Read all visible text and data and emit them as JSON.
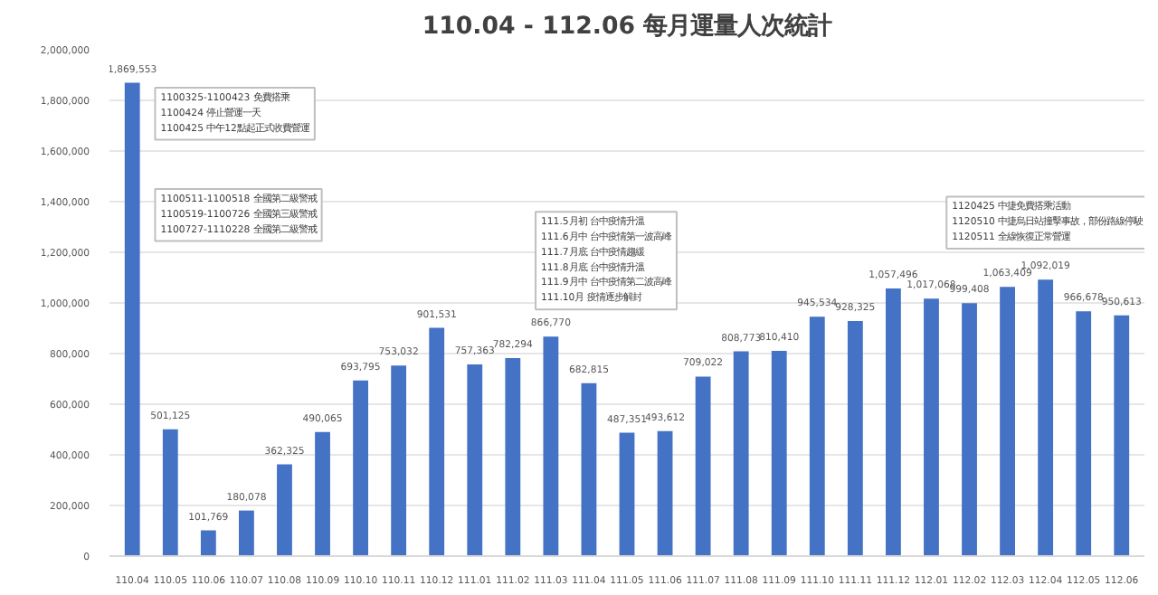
{
  "chart_data": {
    "type": "bar",
    "title": "110.04 - 112.06 每月運量人次統計",
    "categories": [
      "110.04",
      "110.05",
      "110.06",
      "110.07",
      "110.08",
      "110.09",
      "110.10",
      "110.11",
      "110.12",
      "111.01",
      "111.02",
      "111.03",
      "111.04",
      "111.05",
      "111.06",
      "111.07",
      "111.08",
      "111.09",
      "111.10",
      "111.11",
      "111.12",
      "112.01",
      "112.02",
      "112.03",
      "112.04",
      "112.05",
      "112.06"
    ],
    "values": [
      1869553,
      501125,
      101769,
      180078,
      362325,
      490065,
      693795,
      753032,
      901531,
      757363,
      782294,
      866770,
      682815,
      487351,
      493612,
      709022,
      808773,
      810410,
      945534,
      928325,
      1057496,
      1017068,
      999408,
      1063409,
      1092019,
      966678,
      950613
    ],
    "color": "#4472c4",
    "value_labels": [
      "1,869,553",
      "501,125",
      "101,769",
      "180,078",
      "362,325",
      "490,065",
      "693,795",
      "753,032",
      "901,531",
      "757,363",
      "782,294",
      "866,770",
      "682,815",
      "487,351",
      "493,612",
      "709,022",
      "808,773",
      "810,410",
      "945,534",
      "928,325",
      "1,057,496",
      "1,017,068",
      "999,408",
      "1,063,409",
      "1,092,019",
      "966,678",
      "950,613"
    ],
    "ylim": [
      0,
      2000000
    ],
    "yticks": [
      {
        "value": 0,
        "label": "0"
      },
      {
        "value": 200000,
        "label": "200,000"
      },
      {
        "value": 400000,
        "label": "400,000"
      },
      {
        "value": 600000,
        "label": "600,000"
      },
      {
        "value": 800000,
        "label": "800,000"
      },
      {
        "value": 1000000,
        "label": "1,000,000"
      },
      {
        "value": 1200000,
        "label": "1,200,000"
      },
      {
        "value": 1400000,
        "label": "1,400,000"
      },
      {
        "value": 1600000,
        "label": "1,600,000"
      },
      {
        "value": 1800000,
        "label": "1,800,000"
      },
      {
        "value": 2000000,
        "label": "2,000,000"
      }
    ],
    "grid": "y",
    "annotations": [
      "1100325-1100423 免費搭乘\n1100424 停止營運一天\n1100425 中午12點起正式收費營運",
      "1100511-1100518 全國第二級警戒\n1100519-1100726 全國第三級警戒\n1100727-1110228 全國第二級警戒",
      "111.5月初 台中疫情升溫\n111.6月中 台中疫情第一波高峰\n111.7月底 台中疫情趨緩\n111.8月底 台中疫情升溫\n111.9月中 台中疫情第二波高峰\n111.10月 疫情逐步解封",
      "1120425 中捷免費搭乘活動\n1120510 中捷烏日站撞擊事故，部份路線停駛\n1120511 全線恢復正常營運"
    ]
  }
}
